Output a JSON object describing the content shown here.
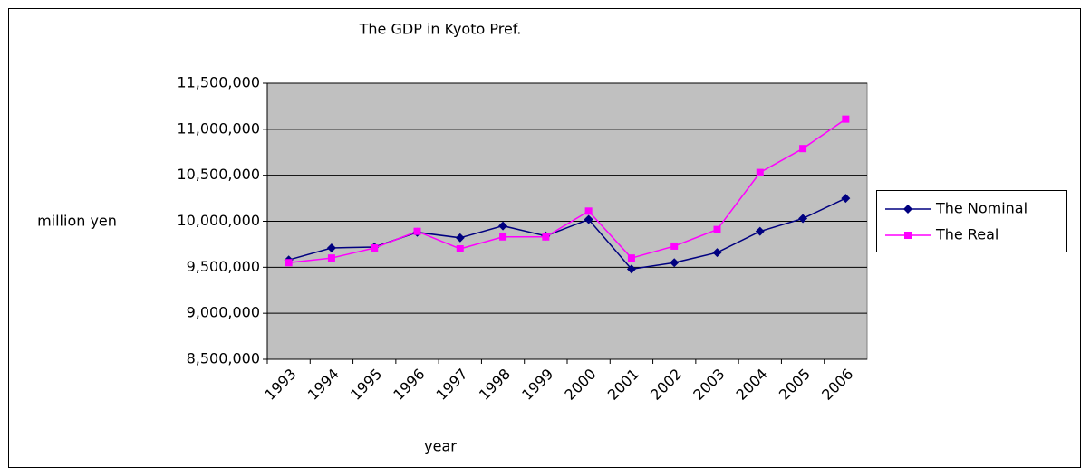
{
  "chart_data": {
    "type": "line",
    "title": "The GDP in Kyoto Pref.",
    "x_label": "year",
    "y_label": "million yen",
    "categories": [
      "1993",
      "1994",
      "1995",
      "1996",
      "1997",
      "1998",
      "1999",
      "2000",
      "2001",
      "2002",
      "2003",
      "2004",
      "2005",
      "2006"
    ],
    "series": [
      {
        "name": "The Nominal",
        "color": "#000080",
        "marker": "diamond",
        "values": [
          9580000,
          9710000,
          9720000,
          9880000,
          9820000,
          9950000,
          9840000,
          10020000,
          9480000,
          9550000,
          9660000,
          9890000,
          10030000,
          10250000
        ]
      },
      {
        "name": "The Real",
        "color": "#ff00ff",
        "marker": "square",
        "values": [
          9550000,
          9600000,
          9710000,
          9890000,
          9700000,
          9830000,
          9830000,
          10110000,
          9600000,
          9730000,
          9910000,
          10530000,
          10790000,
          11110000
        ]
      }
    ],
    "ylim": [
      8500000,
      11500000
    ],
    "yticks": [
      {
        "value": 8500000,
        "label": "8,500,000"
      },
      {
        "value": 9000000,
        "label": "9,000,000"
      },
      {
        "value": 9500000,
        "label": "9,500,000"
      },
      {
        "value": 10000000,
        "label": "10,000,000"
      },
      {
        "value": 10500000,
        "label": "10,500,000"
      },
      {
        "value": 11000000,
        "label": "11,000,000"
      },
      {
        "value": 11500000,
        "label": "11,500,000"
      }
    ],
    "grid": true,
    "legend": "right",
    "plot_background": "#c0c0c0"
  }
}
